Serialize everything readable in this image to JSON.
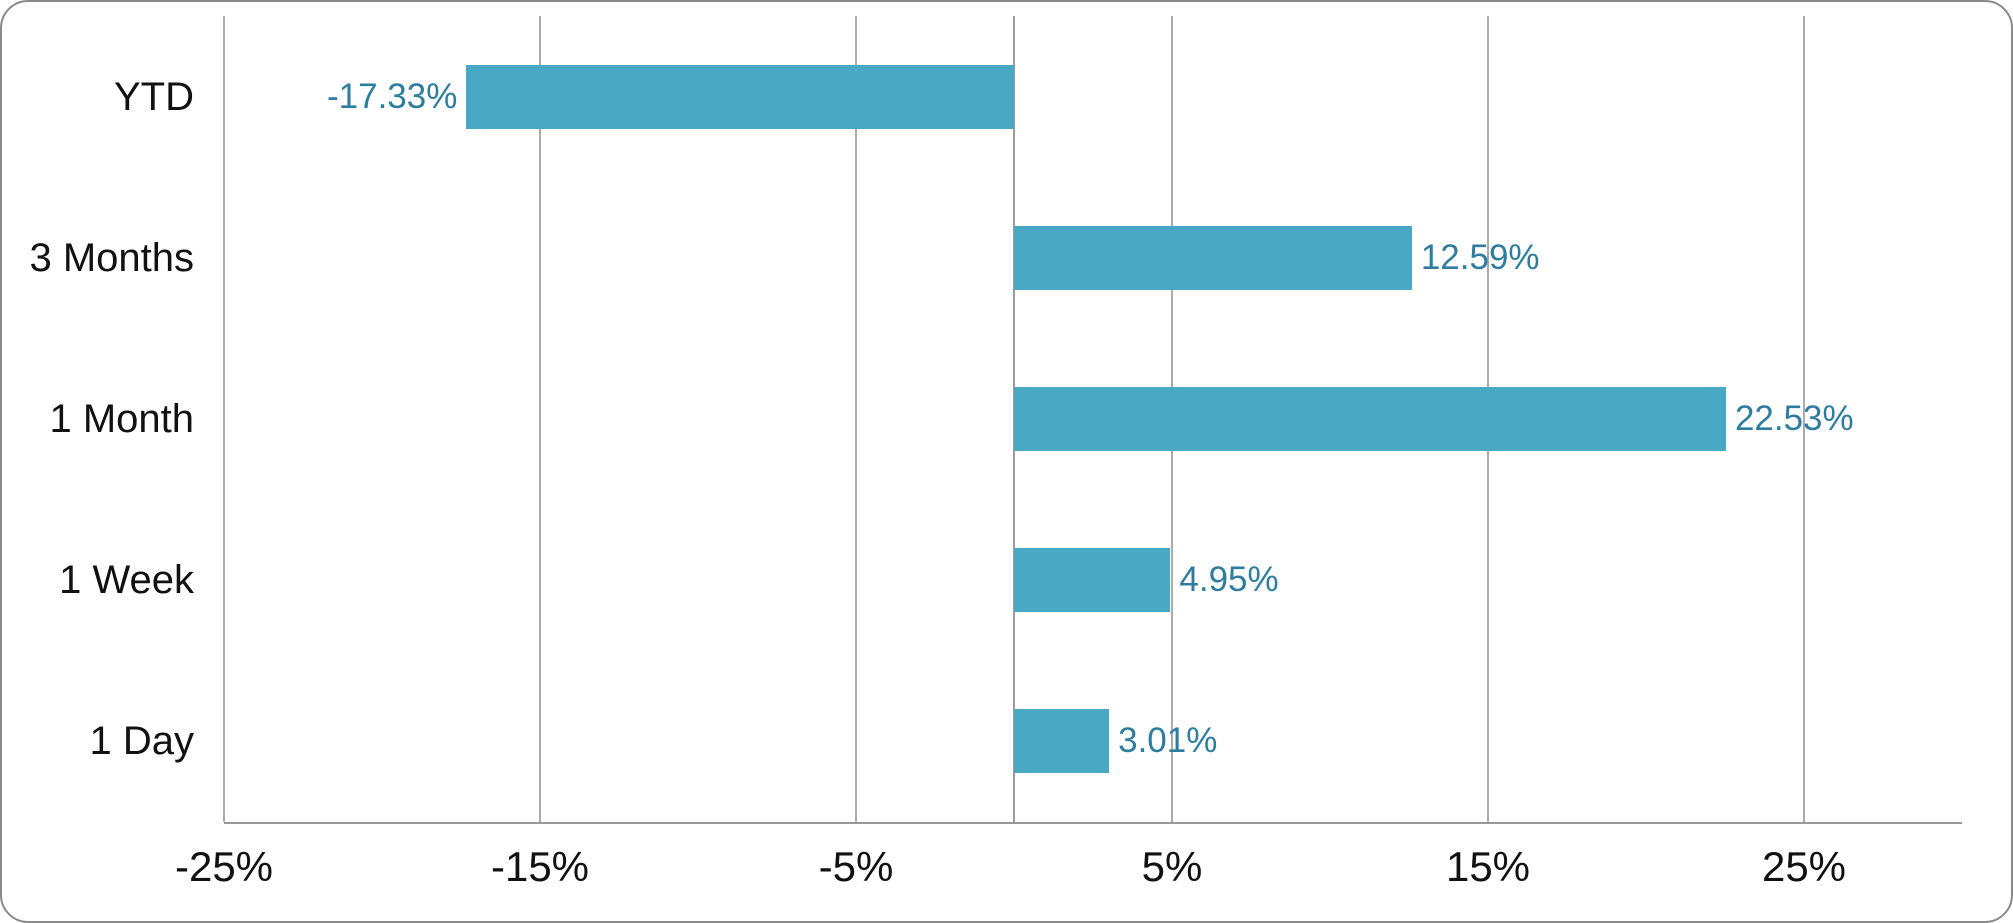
{
  "chart_data": {
    "type": "bar",
    "orientation": "horizontal",
    "categories": [
      "YTD",
      "3 Months",
      "1 Month",
      "1 Week",
      "1 Day"
    ],
    "values": [
      -17.33,
      12.59,
      22.53,
      4.95,
      3.01
    ],
    "data_labels": [
      "-17.33%",
      "12.59%",
      "22.53%",
      "4.95%",
      "3.01%"
    ],
    "x_axis": {
      "min": -25,
      "max": 30,
      "tick_values": [
        -25,
        -15,
        -5,
        5,
        15,
        25
      ],
      "tick_labels": [
        "-25%",
        "-15%",
        "-5%",
        "5%",
        "15%",
        "25%"
      ],
      "grid": true,
      "zero_line": true
    },
    "legend": "none",
    "colors": {
      "bar_fill": "#49A9C4",
      "data_label": "#2E7DA0",
      "gridline": "#ababab",
      "zero_line": "#9c9c9c",
      "axis_line": "#999999",
      "category_label": "#111111",
      "tick_label": "#111111",
      "card_border": "#8a8a8a",
      "background": "#ffffff"
    }
  }
}
